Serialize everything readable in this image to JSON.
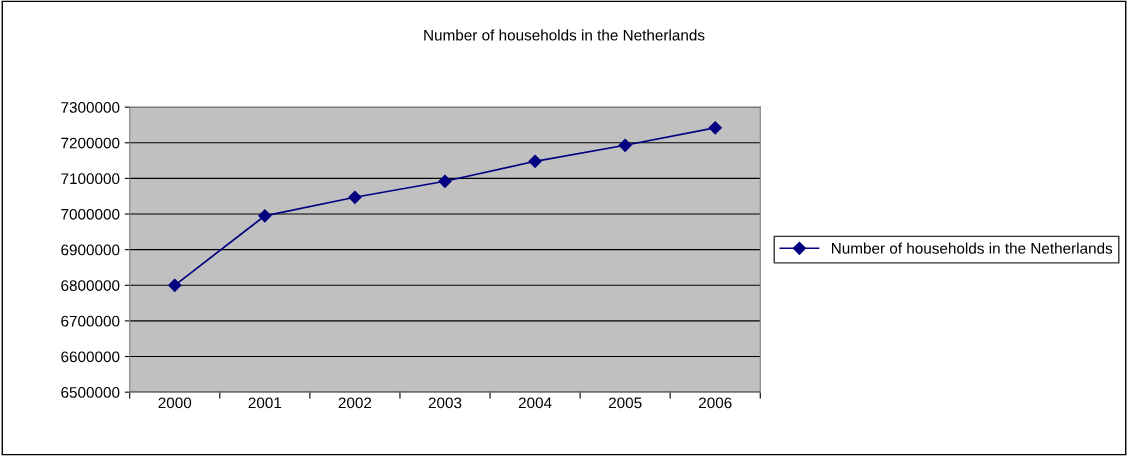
{
  "chart_data": {
    "type": "line",
    "title": "Number of households in the Netherlands",
    "categories": [
      "2000",
      "2001",
      "2002",
      "2003",
      "2004",
      "2005",
      "2006"
    ],
    "series": [
      {
        "name": "Number of households in the Netherlands",
        "color": "#000080",
        "values": [
          6800000,
          6995000,
          7047000,
          7092000,
          7148000,
          7193000,
          7242000
        ]
      }
    ],
    "ylim": [
      6500000,
      7300000
    ],
    "yticks": [
      6500000,
      6600000,
      6700000,
      6800000,
      6900000,
      7000000,
      7100000,
      7200000,
      7300000
    ],
    "grid": "y",
    "legend": "right",
    "marker": "diamond",
    "line_style": "solid"
  }
}
